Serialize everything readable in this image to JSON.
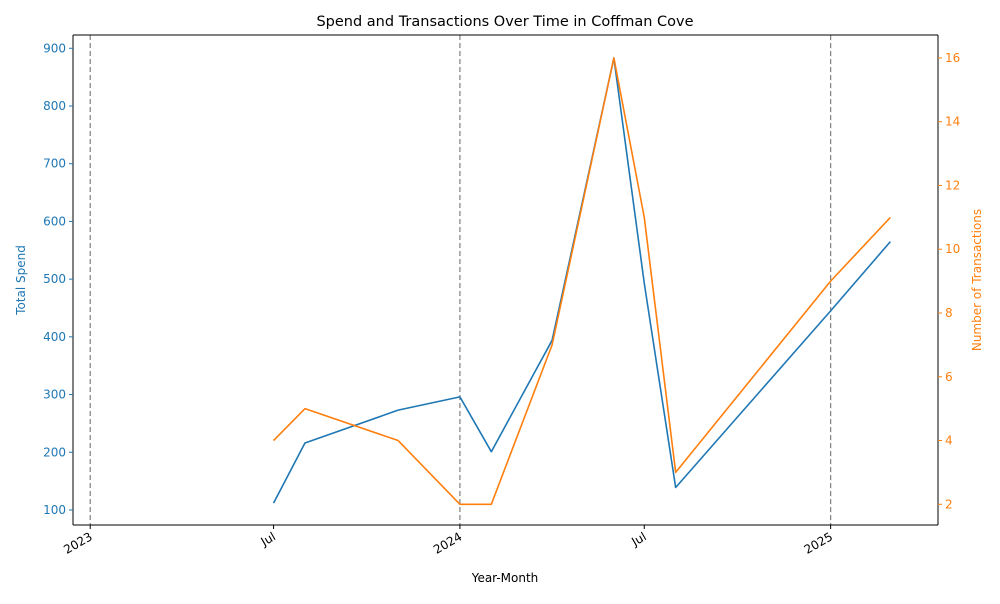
{
  "chart_data": {
    "type": "line",
    "title": "Spend and Transactions Over Time in Coffman Cove",
    "xlabel": "Year-Month",
    "ylabel_left": "Total Spend",
    "ylabel_right": "Number of Transactions",
    "x_range": [
      "2022-12-15",
      "2025-04-17"
    ],
    "ylim_left": [
      74,
      923
    ],
    "ylim_right": [
      1.35,
      16.72
    ],
    "yticks_left": [
      100,
      200,
      300,
      400,
      500,
      600,
      700,
      800,
      900
    ],
    "yticks_right": [
      2,
      4,
      6,
      8,
      10,
      12,
      14,
      16
    ],
    "xticks": [
      {
        "date": "2023-01-01",
        "label": "2023"
      },
      {
        "date": "2023-07-01",
        "label": "Jul"
      },
      {
        "date": "2024-01-01",
        "label": "2024"
      },
      {
        "date": "2024-07-01",
        "label": "Jul"
      },
      {
        "date": "2025-01-01",
        "label": "2025"
      }
    ],
    "vlines": [
      "2023-01-01",
      "2024-01-01",
      "2025-01-01"
    ],
    "grid": false,
    "legend": "none",
    "colors": {
      "spend": "#1f77b4",
      "transactions": "#ff7f0e",
      "vline": "#808080"
    },
    "x": [
      "2023-07-01",
      "2023-08-01",
      "2023-11-01",
      "2024-01-01",
      "2024-02-01",
      "2024-04-01",
      "2024-06-01",
      "2024-07-01",
      "2024-08-01",
      "2025-01-01",
      "2025-03-01"
    ],
    "series": [
      {
        "key": "spend",
        "axis": "left",
        "values": [
          112,
          216,
          273,
          296,
          201,
          394,
          883,
          493,
          139,
          445,
          565
        ]
      },
      {
        "key": "transactions",
        "axis": "right",
        "values": [
          4,
          5,
          4,
          2,
          2,
          7,
          16,
          11,
          3,
          9,
          11
        ]
      }
    ]
  }
}
